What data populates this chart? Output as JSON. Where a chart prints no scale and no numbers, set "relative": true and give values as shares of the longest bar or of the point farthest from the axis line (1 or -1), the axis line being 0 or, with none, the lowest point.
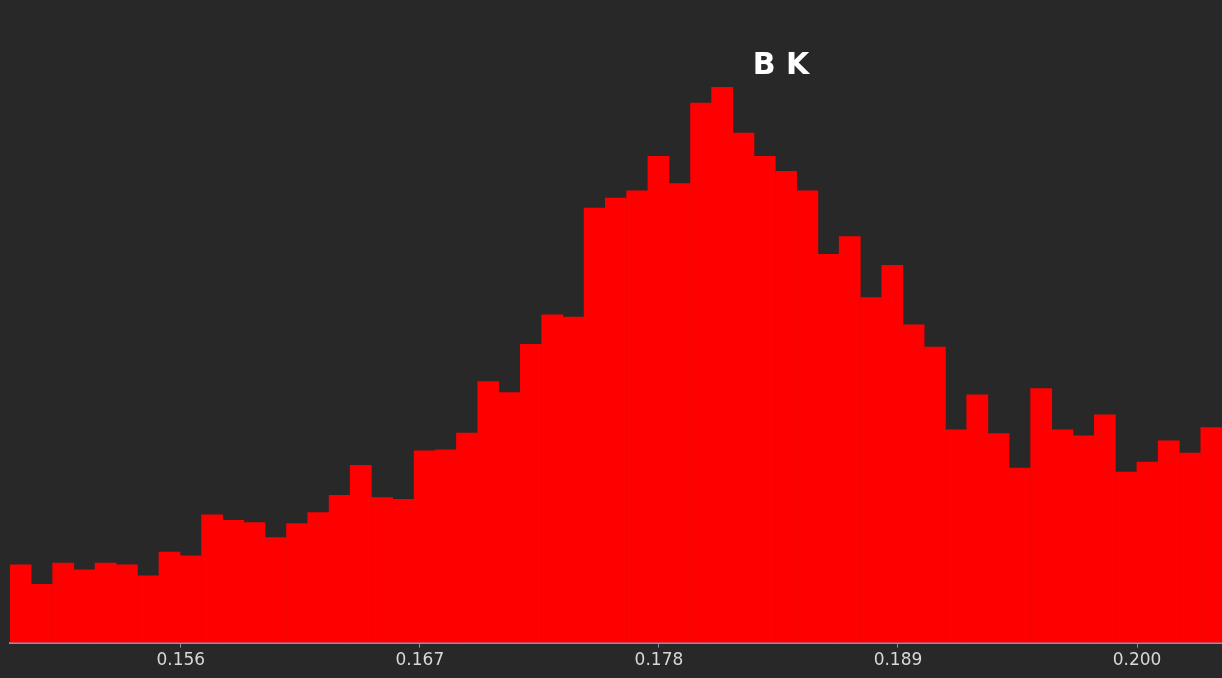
{
  "chart_data": {
    "type": "bar",
    "relative": true,
    "color": "#ff0000",
    "x": [
      0.14863,
      0.14961,
      0.15059,
      0.15157,
      0.15254,
      0.15352,
      0.1545,
      0.15548,
      0.15646,
      0.15744,
      0.15841,
      0.15939,
      0.16037,
      0.16135,
      0.16233,
      0.16331,
      0.16428,
      0.16526,
      0.16624,
      0.16722,
      0.1682,
      0.16917,
      0.17015,
      0.17113,
      0.17211,
      0.17309,
      0.17407,
      0.17504,
      0.17602,
      0.177,
      0.17798,
      0.17896,
      0.17994,
      0.18091,
      0.18189,
      0.18287,
      0.18385,
      0.18483,
      0.18581,
      0.18678,
      0.18776,
      0.18874,
      0.18972,
      0.1907,
      0.19168,
      0.19265,
      0.19363,
      0.19461,
      0.19559,
      0.19657,
      0.19755,
      0.19852,
      0.1995,
      0.20048,
      0.20146,
      0.20244,
      0.20342
    ],
    "values": [
      0.14,
      0.105,
      0.143,
      0.131,
      0.143,
      0.14,
      0.12,
      0.163,
      0.156,
      0.23,
      0.22,
      0.216,
      0.189,
      0.214,
      0.234,
      0.265,
      0.319,
      0.261,
      0.258,
      0.345,
      0.347,
      0.377,
      0.47,
      0.45,
      0.537,
      0.59,
      0.586,
      0.782,
      0.8,
      0.813,
      0.875,
      0.826,
      0.971,
      1,
      0.917,
      0.875,
      0.848,
      0.813,
      0.699,
      0.731,
      0.621,
      0.679,
      0.572,
      0.532,
      0.383,
      0.446,
      0.376,
      0.314,
      0.457,
      0.383,
      0.372,
      0.41,
      0.307,
      0.325,
      0.363,
      0.341,
      0.387
    ],
    "xlim": [
      0.14814,
      0.20391
    ],
    "xticks": [
      {
        "value": 0.156,
        "label": "0.156"
      },
      {
        "value": 0.167,
        "label": "0.167"
      },
      {
        "value": 0.178,
        "label": "0.178"
      },
      {
        "value": 0.189,
        "label": "0.189"
      },
      {
        "value": 0.2,
        "label": "0.200"
      }
    ],
    "annotations": [
      "B K"
    ]
  }
}
